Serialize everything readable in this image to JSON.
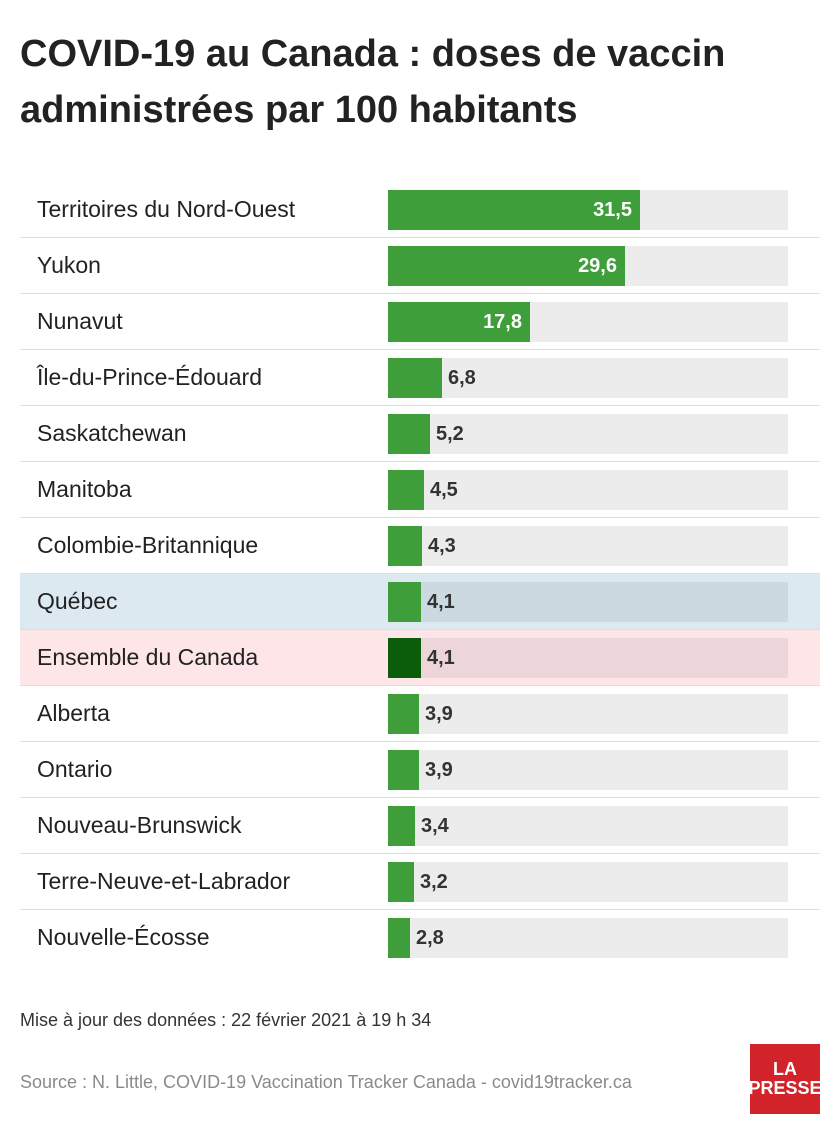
{
  "title": "COVID-19 au Canada : doses de vaccin administrées par 100 habitants",
  "chart_data": {
    "type": "bar",
    "orientation": "horizontal",
    "title": "COVID-19 au Canada : doses de vaccin administrées par 100 habitants",
    "categories": [
      "Territoires du Nord-Ouest",
      "Yukon",
      "Nunavut",
      "Île-du-Prince-Édouard",
      "Saskatchewan",
      "Manitoba",
      "Colombie-Britannique",
      "Québec",
      "Ensemble du Canada",
      "Alberta",
      "Ontario",
      "Nouveau-Brunswick",
      "Terre-Neuve-et-Labrador",
      "Nouvelle-Écosse"
    ],
    "values": [
      31.5,
      29.6,
      17.8,
      6.8,
      5.2,
      4.5,
      4.3,
      4.1,
      4.1,
      3.9,
      3.9,
      3.4,
      3.2,
      2.8
    ],
    "value_labels": [
      "31,5",
      "29,6",
      "17,8",
      "6,8",
      "5,2",
      "4,5",
      "4,3",
      "4,1",
      "4,1",
      "3,9",
      "3,9",
      "3,4",
      "3,2",
      "2,8"
    ],
    "xlim": [
      0,
      50
    ],
    "grid": false,
    "highlighted": {
      "Québec": "blue",
      "Ensemble du Canada": "pink"
    }
  },
  "colors": {
    "bar": "#3d9e3a",
    "bar_national": "#0b5c0b",
    "highlight_quebec": "#dde9f1",
    "highlight_canada": "#fde5e8"
  },
  "footer": {
    "update": "Mise à jour des données : 22 février 2021 à 19 h 34",
    "source": "Source : N. Little, COVID-19 Vaccination Tracker Canada - covid19tracker.ca"
  },
  "logo": {
    "line1": "LA",
    "line2": "PRESSE"
  }
}
